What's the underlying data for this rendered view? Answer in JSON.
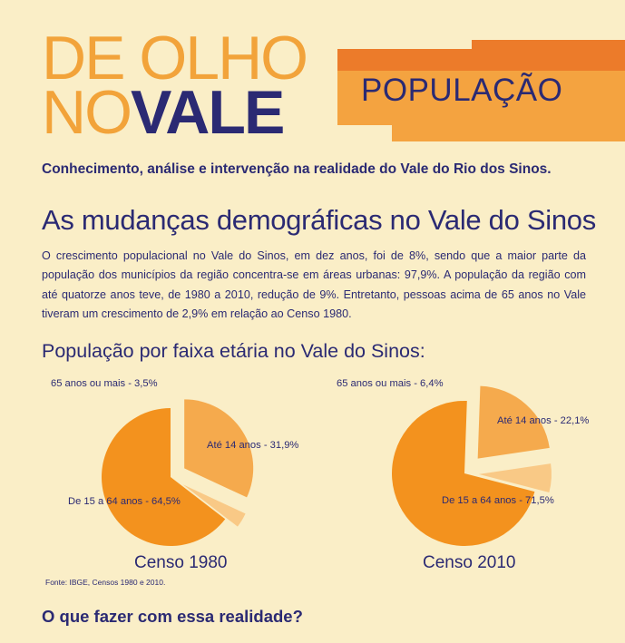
{
  "header": {
    "logo_line1": "DE OLHO",
    "logo_line2_thin": "NO",
    "logo_line2_bold": "VALE",
    "section": "POPULAÇÃO",
    "subtitle": "Conhecimento, análise e intervenção na realidade do Vale do Rio dos Sinos."
  },
  "article": {
    "title": "As mudanças demográficas no Vale do Sinos",
    "intro": "O crescimento populacional no Vale do Sinos, em dez anos, foi de 8%, sendo que a maior parte da população dos municípios da região concentra-se em áreas urbanas: 97,9%. A população da região com até quatorze anos teve, de 1980 a 2010, redução de 9%. Entretanto, pessoas acima de 65 anos no Vale tiveram um crescimento de 2,9% em relação ao Censo 1980.",
    "chart_heading": "População por faixa etária no Vale do Sinos:",
    "source": "Fonte: IBGE, Censos 1980 e 2010.",
    "question": "O que fazer com essa realidade?"
  },
  "colors": {
    "navy": "#2b2a73",
    "orange_dark": "#f3921e",
    "orange_mid": "#f5aa4d",
    "orange_light": "#f9c986",
    "band_dark": "#ec7b2a",
    "band_light": "#f4a340"
  },
  "chart_data": [
    {
      "type": "pie",
      "title": "Censo 1980",
      "slices": [
        {
          "label": "Até 14 anos - 31,9%",
          "value": 31.9,
          "color": "#f5aa4d"
        },
        {
          "label": "65 anos ou mais - 3,5%",
          "value": 3.5,
          "color": "#f9c986"
        },
        {
          "label": "De 15 a 64 anos - 64,5%",
          "value": 64.5,
          "color": "#f3921e"
        }
      ]
    },
    {
      "type": "pie",
      "title": "Censo 2010",
      "slices": [
        {
          "label": "Até 14 anos - 22,1%",
          "value": 22.1,
          "color": "#f5aa4d"
        },
        {
          "label": "65 anos ou mais - 6,4%",
          "value": 6.4,
          "color": "#f9c986"
        },
        {
          "label": "De 15 a 64 anos - 71,5%",
          "value": 71.5,
          "color": "#f3921e"
        }
      ]
    }
  ]
}
